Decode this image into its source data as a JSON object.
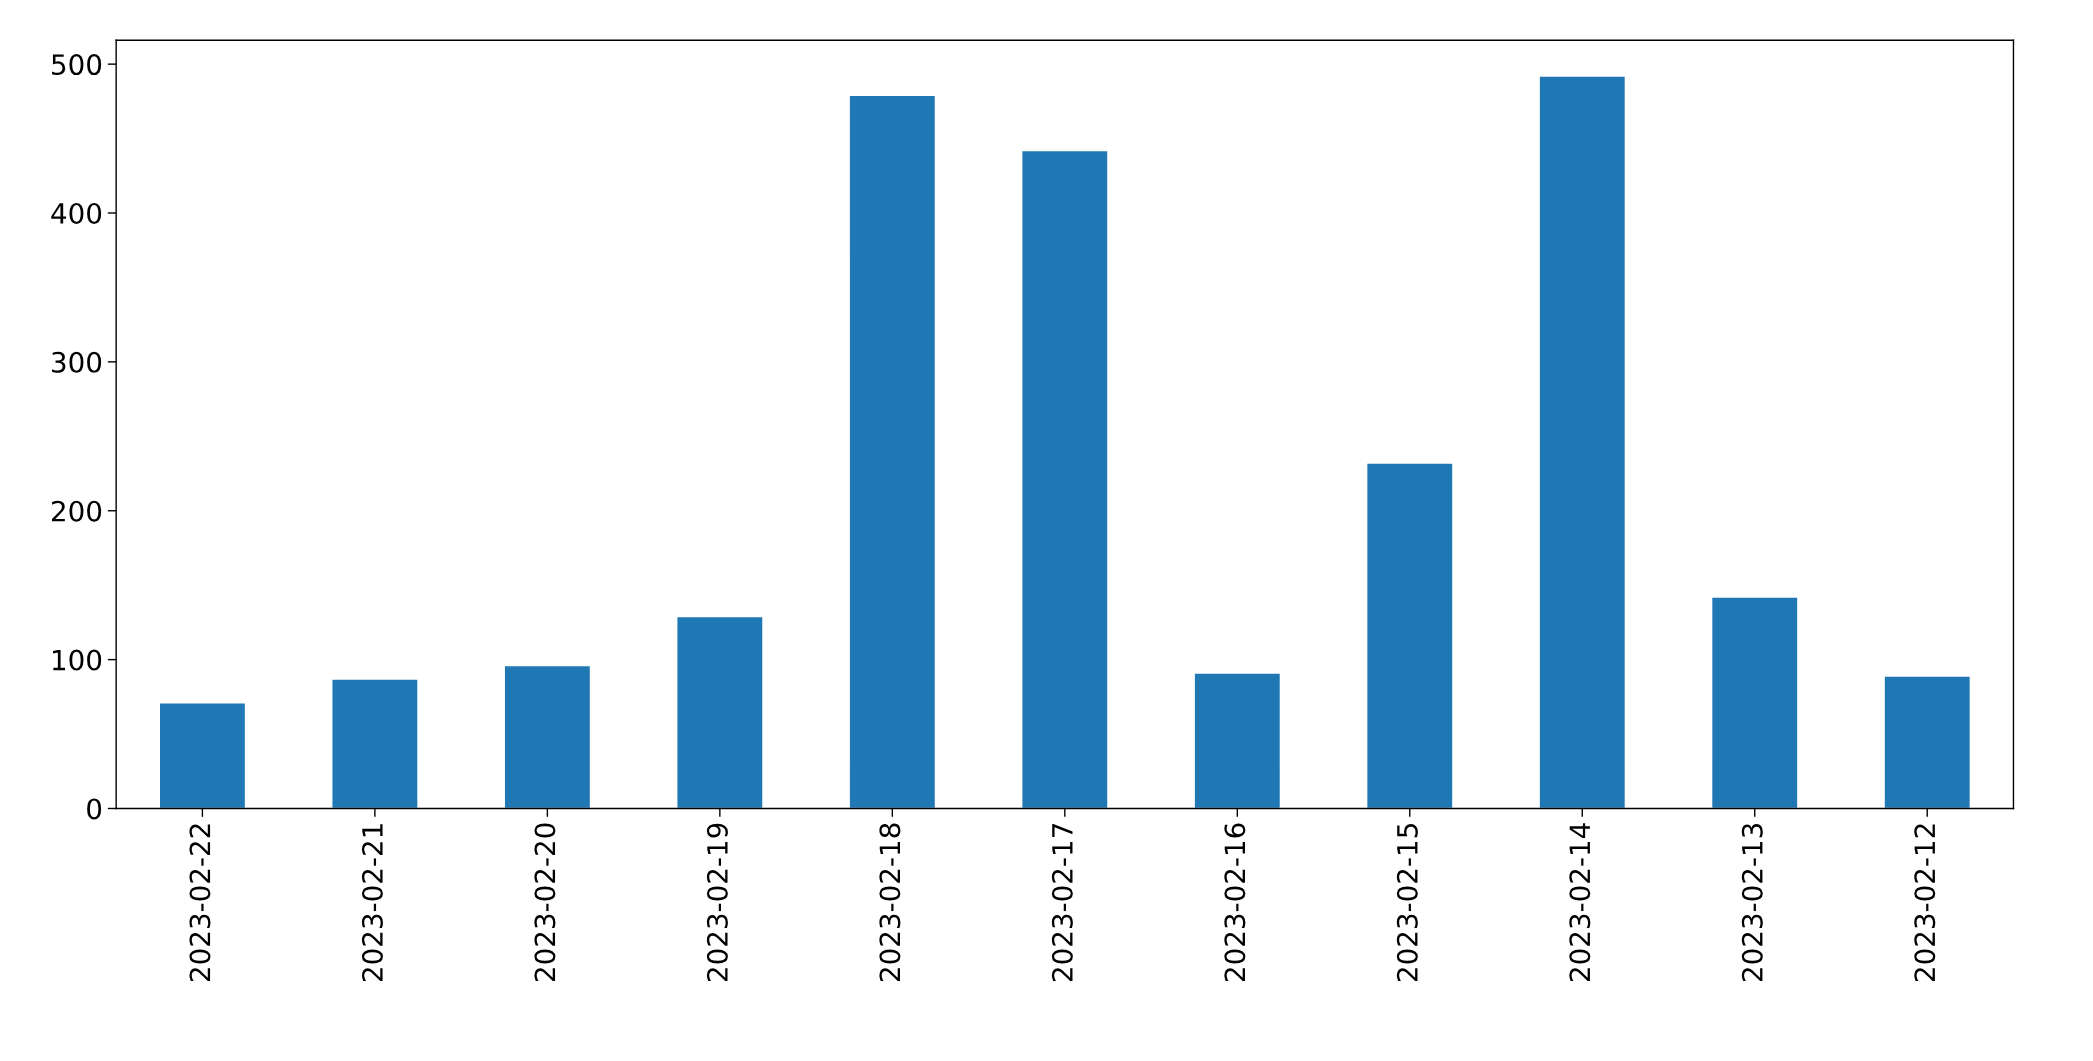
{
  "chart_data": {
    "type": "bar",
    "categories": [
      "2023-02-22",
      "2023-02-21",
      "2023-02-20",
      "2023-02-19",
      "2023-02-18",
      "2023-02-17",
      "2023-02-16",
      "2023-02-15",
      "2023-02-14",
      "2023-02-13",
      "2023-02-12"
    ],
    "values": [
      71,
      87,
      96,
      129,
      479,
      442,
      91,
      232,
      492,
      142,
      89
    ],
    "color": "#1f77b4",
    "ylim": [
      0,
      516
    ],
    "yticks": [
      0,
      100,
      200,
      300,
      400,
      500
    ],
    "grid": false
  }
}
